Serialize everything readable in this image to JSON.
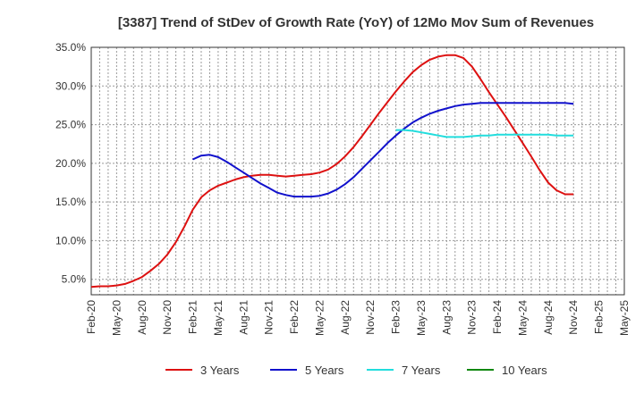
{
  "chart_data": {
    "type": "line",
    "title": "[3387]  Trend of StDev of Growth Rate (YoY) of 12Mo Mov Sum of Revenues",
    "xlabel": "",
    "ylabel": "",
    "ylim": [
      3.0,
      35.0
    ],
    "yticks": [
      5.0,
      10.0,
      15.0,
      20.0,
      25.0,
      30.0,
      35.0
    ],
    "ytick_labels": [
      "5.0%",
      "10.0%",
      "15.0%",
      "20.0%",
      "25.0%",
      "30.0%",
      "35.0%"
    ],
    "xtick_labels": [
      "Feb-20",
      "May-20",
      "Aug-20",
      "Nov-20",
      "Feb-21",
      "May-21",
      "Aug-21",
      "Nov-21",
      "Feb-22",
      "May-22",
      "Aug-22",
      "Nov-22",
      "Feb-23",
      "May-23",
      "Aug-23",
      "Nov-23",
      "Feb-24",
      "May-24",
      "Aug-24",
      "Nov-24",
      "Feb-25",
      "May-25"
    ],
    "grid": true,
    "legend_position": "bottom",
    "series": [
      {
        "name": "3 Years",
        "color": "#dd1111",
        "start_month": 0,
        "values": [
          4.0,
          4.1,
          4.1,
          4.2,
          4.4,
          4.8,
          5.3,
          6.1,
          7.0,
          8.2,
          9.8,
          11.8,
          14.0,
          15.6,
          16.5,
          17.1,
          17.5,
          17.9,
          18.2,
          18.4,
          18.5,
          18.5,
          18.4,
          18.3,
          18.4,
          18.5,
          18.6,
          18.8,
          19.2,
          19.9,
          20.9,
          22.1,
          23.5,
          25.0,
          26.5,
          27.9,
          29.3,
          30.6,
          31.8,
          32.7,
          33.4,
          33.8,
          34.0,
          34.0,
          33.6,
          32.5,
          30.9,
          29.2,
          27.6,
          26.0,
          24.3,
          22.6,
          20.9,
          19.1,
          17.5,
          16.5,
          16.0,
          16.0
        ]
      },
      {
        "name": "5 Years",
        "color": "#1111cc",
        "start_month": 12,
        "values": [
          20.5,
          21.0,
          21.1,
          20.8,
          20.2,
          19.5,
          18.8,
          18.1,
          17.4,
          16.8,
          16.2,
          15.9,
          15.7,
          15.7,
          15.7,
          15.8,
          16.1,
          16.6,
          17.3,
          18.2,
          19.3,
          20.4,
          21.5,
          22.6,
          23.6,
          24.5,
          25.3,
          25.9,
          26.4,
          26.8,
          27.1,
          27.4,
          27.6,
          27.7,
          27.8,
          27.8,
          27.8,
          27.8,
          27.8,
          27.8,
          27.8,
          27.8,
          27.8,
          27.8,
          27.8,
          27.7
        ]
      },
      {
        "name": "7 Years",
        "color": "#22dddd",
        "start_month": 36,
        "values": [
          24.3,
          24.3,
          24.2,
          24.0,
          23.8,
          23.6,
          23.4,
          23.4,
          23.4,
          23.5,
          23.6,
          23.6,
          23.7,
          23.7,
          23.7,
          23.7,
          23.7,
          23.7,
          23.7,
          23.6,
          23.6,
          23.6
        ]
      },
      {
        "name": "10 Years",
        "color": "#118811",
        "start_month": 0,
        "values": []
      }
    ]
  }
}
